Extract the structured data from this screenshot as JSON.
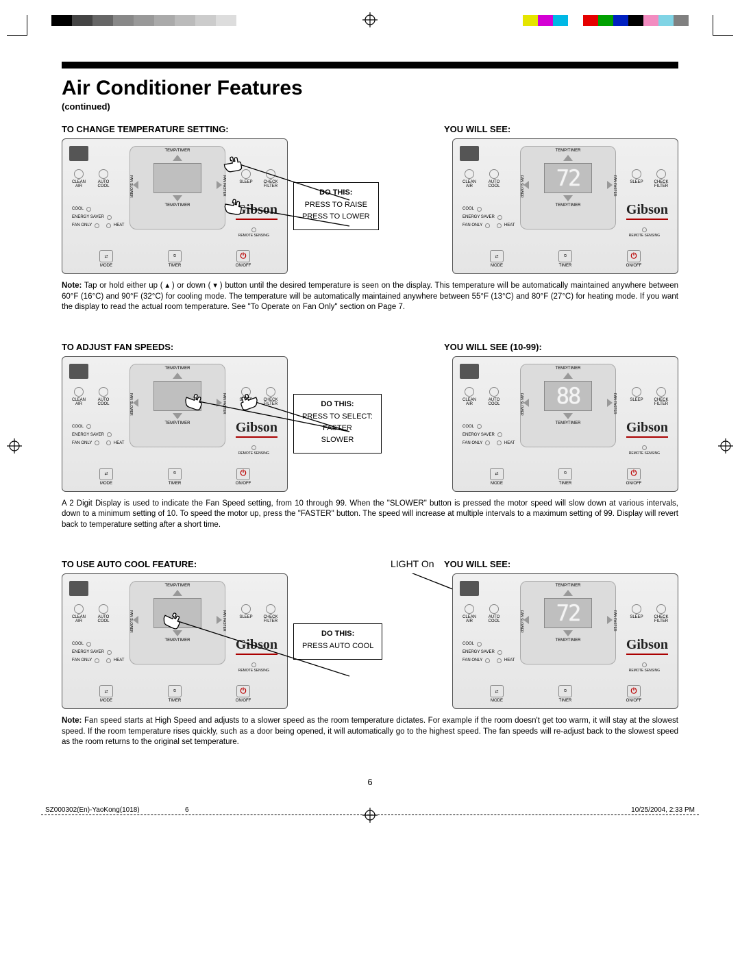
{
  "regmarks": {
    "grays": [
      "#000000",
      "#444444",
      "#666666",
      "#888888",
      "#999999",
      "#aaaaaa",
      "#bbbbbb",
      "#cccccc",
      "#dddddd"
    ],
    "colors": [
      "#e5e500",
      "#d400d4",
      "#00b8e5",
      "#00000000",
      "#e50000",
      "#00a000",
      "#0020c0",
      "#000000",
      "#f28cc0",
      "#80d4e5",
      "#808080"
    ]
  },
  "title": "Air Conditioner Features",
  "continued": "(continued)",
  "panel_labels": {
    "temp_timer": "TEMP/TIMER",
    "clean_air": "CLEAN AIR",
    "auto_cool": "AUTO COOL",
    "fan_slower": "FAN SLOWER",
    "fan_faster": "FAN FASTER",
    "sleep": "SLEEP",
    "check_filter": "CHECK FILTER",
    "cool": "COOL",
    "energy_saver": "ENERGY SAVER",
    "fan_only": "FAN ONLY",
    "heat": "HEAT",
    "mode": "MODE",
    "timer": "TIMER",
    "on_off": "ON/OFF",
    "remote_sensing": "REMOTE SENSING",
    "brand": "Gibson"
  },
  "sections": [
    {
      "left_heading": "TO CHANGE TEMPERATURE SETTING:",
      "right_heading": "YOU WILL SEE:",
      "display_left": "",
      "display_right": "72",
      "do_title": "DO THIS:",
      "do_lines": [
        "PRESS TO RAISE",
        "PRESS TO LOWER"
      ],
      "note_bold": "Note:",
      "note": " Tap or hold either up ( ▴ ) or down ( ▾ ) button until the desired temperature is seen on the display. This temperature will be automatically maintained anywhere between 60°F (16°C) and  90°F (32°C) for cooling mode. The temperature will be automatically maintained anywhere between 55°F (13°C) and  80°F (27°C) for heating mode. If you want the display to read the actual room temperature. See \"To Operate on Fan Only\" section on Page 7.",
      "show_light": false,
      "lighton": ""
    },
    {
      "left_heading": "TO ADJUST FAN SPEEDS:",
      "right_heading": "YOU WILL SEE (10-99):",
      "display_left": "",
      "display_right": "88",
      "do_title": "DO THIS:",
      "do_lines": [
        "PRESS TO SELECT:",
        "FASTER",
        "SLOWER"
      ],
      "note_bold": "",
      "note": "A 2 Digit Display is used to indicate the Fan Speed setting, from 10 through 99. When the \"SLOWER\" button is pressed the motor speed will slow down at various intervals, down to a minimum setting of 10. To speed the motor up, press the \"FASTER\" button. The speed will increase at multiple intervals to a maximum setting of 99. Display will revert back to temperature setting after a short time.",
      "show_light": false,
      "lighton": ""
    },
    {
      "left_heading": "TO USE AUTO COOL FEATURE:",
      "right_heading": "YOU WILL SEE:",
      "display_left": "",
      "display_right": "72",
      "do_title": "DO THIS:",
      "do_lines": [
        "PRESS AUTO COOL"
      ],
      "note_bold": "Note:",
      "note": " Fan speed starts at High Speed and adjusts to a slower speed as the room temperature dictates. For example if the room doesn't get too warm, it will stay at the slowest speed. If the room temperature rises quickly, such as a door being opened, it will automatically go to the highest speed. The fan speeds will re-adjust back to the slowest speed as the room returns to the original set temperature.",
      "show_light": true,
      "lighton": "LIGHT On"
    }
  ],
  "page_number": "6",
  "footer": {
    "left": "SZ000302(En)-YaoKong(1018)",
    "mid": "6",
    "right": "10/25/2004, 2:33 PM"
  }
}
